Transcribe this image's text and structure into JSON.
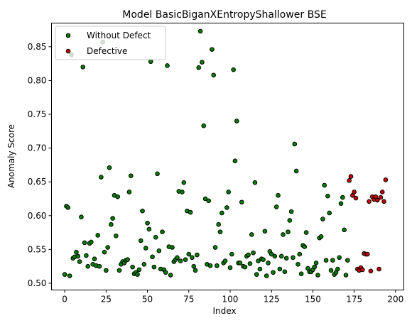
{
  "chart_data": {
    "type": "scatter",
    "title": "Model BasicBiganXEntropyShallower BSE",
    "xlabel": "Index",
    "ylabel": "Anomaly Score",
    "xlim": [
      -8,
      205
    ],
    "ylim": [
      0.49,
      0.885
    ],
    "xticks": [
      "0",
      "25",
      "50",
      "75",
      "100",
      "125",
      "150",
      "175",
      "200"
    ],
    "xtick_values": [
      0,
      25,
      50,
      75,
      100,
      125,
      150,
      175,
      200
    ],
    "yticks": [
      "0.50",
      "0.55",
      "0.60",
      "0.65",
      "0.70",
      "0.75",
      "0.80",
      "0.85"
    ],
    "ytick_values": [
      0.5,
      0.55,
      0.6,
      0.65,
      0.7,
      0.75,
      0.8,
      0.85
    ],
    "grid": false,
    "legend_position": "upper-left",
    "series": [
      {
        "name": "Without Defect",
        "color": "#008000",
        "edge": "#000000",
        "points": [
          [
            0,
            0.513
          ],
          [
            1,
            0.614
          ],
          [
            2,
            0.612
          ],
          [
            3,
            0.511
          ],
          [
            4,
            0.838
          ],
          [
            5,
            0.537
          ],
          [
            6,
            0.539
          ],
          [
            7,
            0.546
          ],
          [
            8,
            0.54
          ],
          [
            9,
            0.532
          ],
          [
            10,
            0.598
          ],
          [
            11,
            0.82
          ],
          [
            12,
            0.56
          ],
          [
            13,
            0.541
          ],
          [
            14,
            0.525
          ],
          [
            15,
            0.559
          ],
          [
            16,
            0.561
          ],
          [
            17,
            0.528
          ],
          [
            18,
            0.536
          ],
          [
            19,
            0.526
          ],
          [
            20,
            0.571
          ],
          [
            21,
            0.525
          ],
          [
            22,
            0.657
          ],
          [
            23,
            0.857
          ],
          [
            24,
            0.546
          ],
          [
            25,
            0.519
          ],
          [
            26,
            0.553
          ],
          [
            27,
            0.671
          ],
          [
            28,
            0.587
          ],
          [
            29,
            0.596
          ],
          [
            30,
            0.63
          ],
          [
            31,
            0.57
          ],
          [
            32,
            0.628
          ],
          [
            33,
            0.519
          ],
          [
            34,
            0.528
          ],
          [
            35,
            0.532
          ],
          [
            36,
            0.53
          ],
          [
            37,
            0.534
          ],
          [
            38,
            0.535
          ],
          [
            39,
            0.635
          ],
          [
            40,
            0.659
          ],
          [
            41,
            0.524
          ],
          [
            42,
            0.514
          ],
          [
            43,
            0.516
          ],
          [
            44,
            0.513
          ],
          [
            45,
            0.52
          ],
          [
            46,
            0.563
          ],
          [
            47,
            0.607
          ],
          [
            48,
            0.528
          ],
          [
            49,
            0.552
          ],
          [
            50,
            0.589
          ],
          [
            51,
            0.58
          ],
          [
            52,
            0.828
          ],
          [
            53,
            0.539
          ],
          [
            54,
            0.524
          ],
          [
            55,
            0.568
          ],
          [
            56,
            0.662
          ],
          [
            57,
            0.548
          ],
          [
            58,
            0.521
          ],
          [
            59,
            0.576
          ],
          [
            60,
            0.52
          ],
          [
            61,
            0.516
          ],
          [
            62,
            0.822
          ],
          [
            63,
            0.554
          ],
          [
            64,
            0.512
          ],
          [
            65,
            0.553
          ],
          [
            66,
            0.532
          ],
          [
            67,
            0.535
          ],
          [
            68,
            0.538
          ],
          [
            69,
            0.636
          ],
          [
            70,
            0.533
          ],
          [
            71,
            0.635
          ],
          [
            72,
            0.649
          ],
          [
            73,
            0.535
          ],
          [
            74,
            0.607
          ],
          [
            75,
            0.543
          ],
          [
            76,
            0.605
          ],
          [
            77,
            0.538
          ],
          [
            78,
            0.525
          ],
          [
            79,
            0.519
          ],
          [
            80,
            0.542
          ],
          [
            81,
            0.819
          ],
          [
            82,
            0.873
          ],
          [
            83,
            0.827
          ],
          [
            84,
            0.733
          ],
          [
            85,
            0.625
          ],
          [
            86,
            0.528
          ],
          [
            87,
            0.622
          ],
          [
            88,
            0.526
          ],
          [
            89,
            0.846
          ],
          [
            90,
            0.808
          ],
          [
            91,
            0.553
          ],
          [
            92,
            0.526
          ],
          [
            93,
            0.587
          ],
          [
            94,
            0.576
          ],
          [
            95,
            0.604
          ],
          [
            96,
            0.53
          ],
          [
            97,
            0.533
          ],
          [
            98,
            0.612
          ],
          [
            99,
            0.635
          ],
          [
            100,
            0.523
          ],
          [
            101,
            0.543
          ],
          [
            102,
            0.816
          ],
          [
            103,
            0.681
          ],
          [
            104,
            0.74
          ],
          [
            105,
            0.53
          ],
          [
            106,
            0.53
          ],
          [
            107,
            0.62
          ],
          [
            108,
            0.525
          ],
          [
            109,
            0.524
          ],
          [
            110,
            0.54
          ],
          [
            111,
            0.542
          ],
          [
            112,
            0.529
          ],
          [
            113,
            0.572
          ],
          [
            114,
            0.545
          ],
          [
            115,
            0.649
          ],
          [
            116,
            0.513
          ],
          [
            117,
            0.533
          ],
          [
            118,
            0.521
          ],
          [
            119,
            0.536
          ],
          [
            120,
            0.535
          ],
          [
            121,
            0.577
          ],
          [
            122,
            0.511
          ],
          [
            123,
            0.53
          ],
          [
            124,
            0.547
          ],
          [
            125,
            0.543
          ],
          [
            126,
            0.516
          ],
          [
            127,
            0.54
          ],
          [
            128,
            0.613
          ],
          [
            129,
            0.63
          ],
          [
            130,
            0.521
          ],
          [
            131,
            0.54
          ],
          [
            132,
            0.572
          ],
          [
            133,
            0.517
          ],
          [
            134,
            0.537
          ],
          [
            135,
            0.576
          ],
          [
            136,
            0.593
          ],
          [
            137,
            0.606
          ],
          [
            138,
            0.538
          ],
          [
            139,
            0.706
          ],
          [
            140,
            0.666
          ],
          [
            141,
            0.528
          ],
          [
            142,
            0.543
          ],
          [
            143,
            0.514
          ],
          [
            144,
            0.556
          ],
          [
            145,
            0.554
          ],
          [
            146,
            0.575
          ],
          [
            147,
            0.522
          ],
          [
            148,
            0.517
          ],
          [
            149,
            0.517
          ],
          [
            150,
            0.52
          ],
          [
            151,
            0.524
          ],
          [
            152,
            0.53
          ],
          [
            153,
            0.512
          ],
          [
            154,
            0.567
          ],
          [
            155,
            0.569
          ],
          [
            156,
            0.595
          ],
          [
            157,
            0.645
          ],
          [
            158,
            0.534
          ],
          [
            159,
            0.629
          ],
          [
            160,
            0.604
          ],
          [
            161,
            0.519
          ],
          [
            162,
            0.534
          ],
          [
            163,
            0.513
          ],
          [
            164,
            0.516
          ],
          [
            165,
            0.521
          ],
          [
            166,
            0.538
          ],
          [
            167,
            0.618
          ],
          [
            168,
            0.627
          ],
          [
            169,
            0.579
          ],
          [
            170,
            0.512
          ],
          [
            171,
            0.534
          ]
        ]
      },
      {
        "name": "Defective",
        "color": "#cc0000",
        "edge": "#000000",
        "points": [
          [
            172,
            0.652
          ],
          [
            173,
            0.658
          ],
          [
            174,
            0.63
          ],
          [
            175,
            0.635
          ],
          [
            176,
            0.626
          ],
          [
            177,
            0.521
          ],
          [
            178,
            0.519
          ],
          [
            179,
            0.523
          ],
          [
            180,
            0.52
          ],
          [
            181,
            0.544
          ],
          [
            182,
            0.543
          ],
          [
            183,
            0.543
          ],
          [
            184,
            0.621
          ],
          [
            185,
            0.518
          ],
          [
            186,
            0.628
          ],
          [
            187,
            0.624
          ],
          [
            188,
            0.628
          ],
          [
            189,
            0.623
          ],
          [
            190,
            0.521
          ],
          [
            191,
            0.627
          ],
          [
            192,
            0.635
          ],
          [
            193,
            0.621
          ],
          [
            194,
            0.653
          ]
        ]
      }
    ]
  }
}
